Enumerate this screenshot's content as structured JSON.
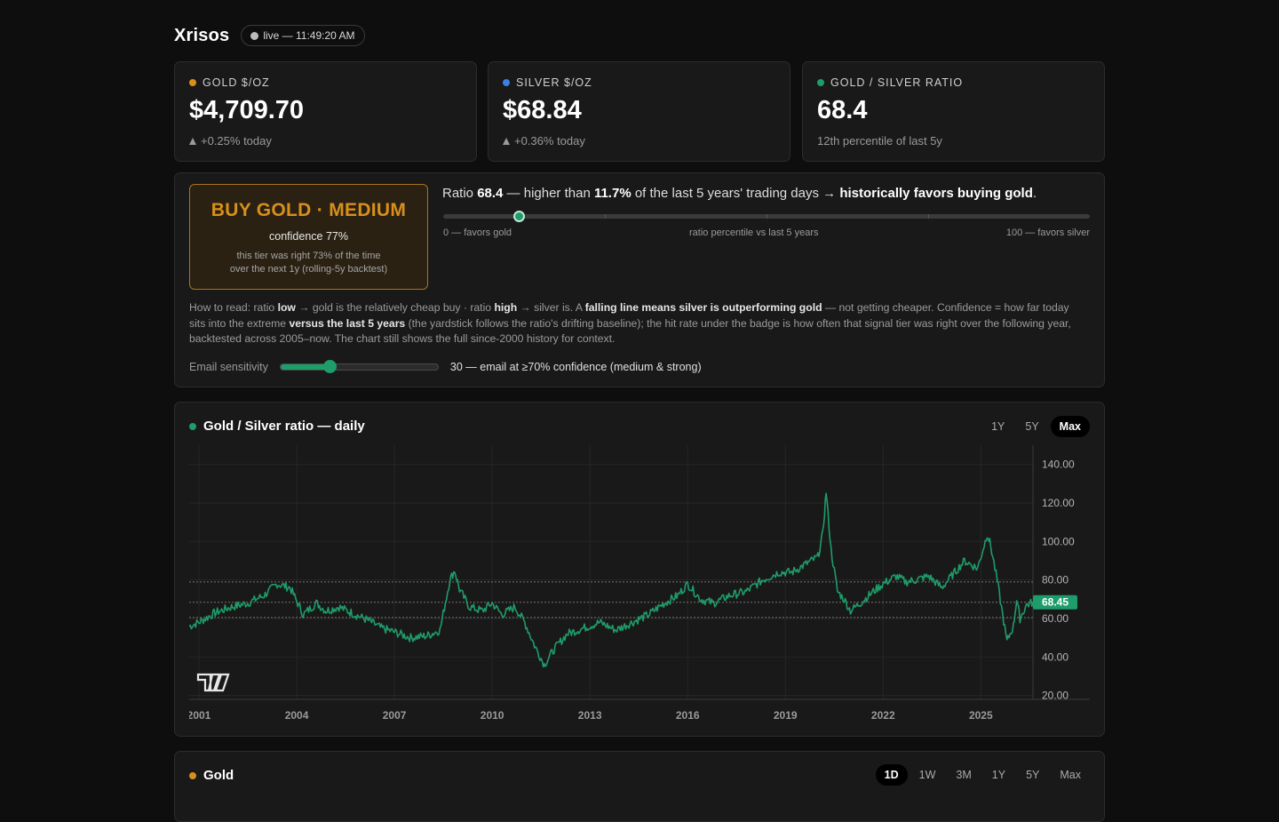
{
  "header": {
    "brand": "Xrisos",
    "live_label": "live — 11:49:20 AM"
  },
  "stats": [
    {
      "label": "GOLD $/OZ",
      "value": "$4,709.70",
      "sub": "+0.25% today",
      "color": "#d98f1b",
      "arrow": "up-triangle-icon"
    },
    {
      "label": "SILVER $/OZ",
      "value": "$68.84",
      "sub": "+0.36% today",
      "color": "#3d7fe0",
      "arrow": "up-triangle-icon"
    },
    {
      "label": "GOLD / SILVER RATIO",
      "value": "68.4",
      "sub": "12th percentile of last 5y",
      "color": "#1e9c6a"
    }
  ],
  "signal": {
    "badge_title": "BUY GOLD · MEDIUM",
    "confidence": "confidence 77%",
    "note_line1": "this tier was right 73% of the time",
    "note_line2": "over the next 1y (rolling-5y backtest)",
    "head": {
      "p1": "Ratio ",
      "ratio": "68.4",
      "p2": " — higher than ",
      "pct": "11.7%",
      "p3": " of the last 5 years' trading days → ",
      "verdict": "historically favors buying gold",
      "p4": "."
    },
    "percentile": 11.7,
    "scale_left": "0 — favors gold",
    "scale_mid": "ratio percentile vs last 5 years",
    "scale_right": "100 — favors silver",
    "explain": {
      "a": "How to read: ratio ",
      "b": "low",
      "c": " → gold is the relatively cheap buy · ratio ",
      "d": "high",
      "e": " → silver is. A ",
      "f": "falling line means silver is outperforming gold",
      "g": " — not getting cheaper. Confidence = how far today sits into the extreme ",
      "h": "versus the last 5 years",
      "i": " (the yardstick follows the ratio's drifting baseline); the hit rate under the badge is how often that signal tier was right over the following year, backtested across 2005–now. The chart still shows the full since-2000 history for context."
    },
    "sens_label": "Email sensitivity",
    "sens_value": 30,
    "sens_text": "30 — email at ≥70% confidence (medium & strong)"
  },
  "ratio_chart_card": {
    "title": "Gold / Silver ratio — daily",
    "ranges": [
      "1Y",
      "5Y",
      "Max"
    ],
    "active_range": "Max"
  },
  "chart_data": {
    "type": "line",
    "title": "Gold / Silver ratio — daily",
    "xlim": [
      2000.7,
      2026.6
    ],
    "ylim": [
      18,
      150
    ],
    "x_ticks": [
      "2001",
      "2004",
      "2007",
      "2010",
      "2013",
      "2016",
      "2019",
      "2022",
      "2025"
    ],
    "y_ticks": [
      "20.00",
      "40.00",
      "60.00",
      "80.00",
      "100.00",
      "120.00",
      "140.00"
    ],
    "reference_lines": [
      79.0,
      68.45,
      60.5
    ],
    "last_value_label": "68.45",
    "series": [
      {
        "x": [
          2000.7,
          2001.0,
          2001.5,
          2002.0,
          2002.5,
          2003.0,
          2003.4,
          2003.8,
          2004.2,
          2004.6,
          2004.9,
          2005.3,
          2005.8,
          2006.2,
          2006.6,
          2007.0,
          2007.5,
          2008.0,
          2008.4,
          2008.7,
          2008.85,
          2009.0,
          2009.3,
          2009.7,
          2010.0,
          2010.3,
          2010.7,
          2011.0,
          2011.3,
          2011.6,
          2011.9,
          2012.3,
          2012.8,
          2013.3,
          2013.8,
          2014.3,
          2014.8,
          2015.2,
          2015.7,
          2016.0,
          2016.4,
          2016.8,
          2017.3,
          2017.8,
          2018.3,
          2018.8,
          2019.2,
          2019.6,
          2020.0,
          2020.15,
          2020.25,
          2020.4,
          2020.6,
          2020.8,
          2021.0,
          2021.3,
          2021.7,
          2022.0,
          2022.4,
          2022.7,
          2023.0,
          2023.4,
          2023.8,
          2024.2,
          2024.5,
          2024.9,
          2025.2,
          2025.3,
          2025.5,
          2025.8,
          2026.0,
          2026.1,
          2026.2,
          2026.4,
          2026.6
        ],
        "y": [
          56,
          58,
          63,
          66,
          68,
          72,
          78,
          76,
          62,
          68,
          64,
          66,
          62,
          59,
          55,
          53,
          50,
          51,
          54,
          80,
          85,
          75,
          66,
          64,
          68,
          62,
          66,
          58,
          46,
          36,
          44,
          52,
          55,
          58,
          54,
          58,
          62,
          67,
          72,
          78,
          70,
          68,
          72,
          74,
          80,
          84,
          84,
          88,
          92,
          104,
          126,
          96,
          74,
          70,
          64,
          68,
          74,
          78,
          82,
          79,
          80,
          82,
          76,
          84,
          90,
          86,
          104,
          98,
          80,
          48,
          56,
          70,
          60,
          67,
          68.45
        ]
      }
    ]
  },
  "gold_card": {
    "title": "Gold",
    "ranges": [
      "1D",
      "1W",
      "3M",
      "1Y",
      "5Y",
      "Max"
    ],
    "active_range": "1D"
  }
}
